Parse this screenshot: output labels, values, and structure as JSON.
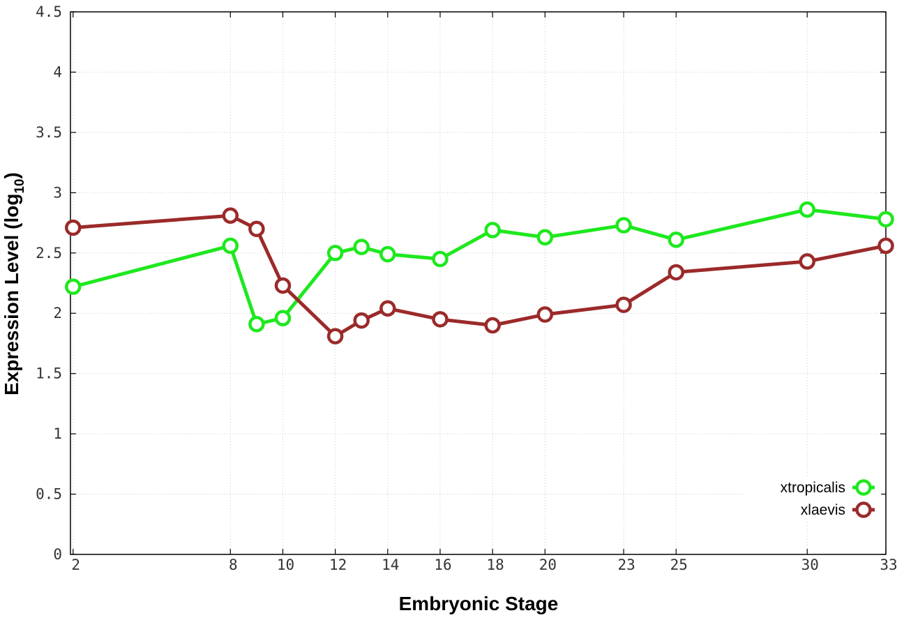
{
  "chart_data": {
    "type": "line",
    "xlabel": "Embryonic Stage",
    "ylabel": "Expression Level (log",
    "ylabel_subscript": "10",
    "ylabel_suffix": ")",
    "x": [
      2,
      8,
      9,
      10,
      12,
      13,
      14,
      16,
      18,
      20,
      23,
      25,
      30,
      33
    ],
    "xticks": [
      2,
      8,
      10,
      12,
      14,
      16,
      18,
      20,
      23,
      25,
      30,
      33
    ],
    "xlim": [
      1.9,
      33
    ],
    "yticks": [
      "0",
      "0.5",
      "1",
      "1.5",
      "2",
      "2.5",
      "3",
      "3.5",
      "4",
      "4.5"
    ],
    "ylim": [
      0,
      4.5
    ],
    "grid": true,
    "legend_position": "bottom-right",
    "series": [
      {
        "name": "xtropicalis",
        "color": "#1ee81e",
        "values": [
          2.22,
          2.56,
          1.91,
          1.96,
          2.5,
          2.55,
          2.49,
          2.45,
          2.69,
          2.63,
          2.73,
          2.61,
          2.86,
          2.78
        ]
      },
      {
        "name": "xlaevis",
        "color": "#9b2a2a",
        "values": [
          2.71,
          2.81,
          2.7,
          2.23,
          1.81,
          1.94,
          2.04,
          1.95,
          1.9,
          1.99,
          2.07,
          2.34,
          2.43,
          2.56
        ]
      }
    ]
  }
}
